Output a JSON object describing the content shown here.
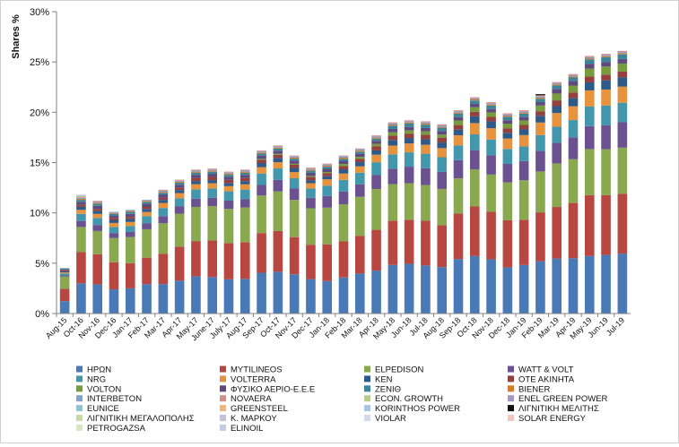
{
  "chart_data": {
    "type": "bar",
    "stacked": true,
    "title": "",
    "xlabel": "",
    "ylabel": "Shares %",
    "ylim": [
      0,
      30
    ],
    "yticks": [
      "0%",
      "5%",
      "10%",
      "15%",
      "20%",
      "25%",
      "30%"
    ],
    "ytick_values": [
      0,
      5,
      10,
      15,
      20,
      25,
      30
    ],
    "grid": false,
    "legend_position": "bottom",
    "categories": [
      "Aug-15",
      "Oct-16",
      "Nov-16",
      "Dec-16",
      "Jan-17",
      "Feb-17",
      "Mar-17",
      "Apr-17",
      "May-17",
      "June-17",
      "July-17",
      "Aug-17",
      "Sep-17",
      "Oct-17",
      "Nov-17",
      "Dec-17",
      "Jan-18",
      "Feb-18",
      "Mar-18",
      "Apr-18",
      "May-18",
      "Jun-18",
      "Jul-18",
      "Aug-18",
      "Sep-18",
      "Oct-18",
      "Nov-18",
      "Dec-18",
      "Jan-19",
      "Feb-19",
      "Mar-19",
      "Apr-19",
      "May-19",
      "Jun-19",
      "Jul-19"
    ],
    "totals": [
      4.5,
      11.8,
      11.2,
      10.1,
      10.3,
      11.3,
      12.3,
      13.3,
      14.3,
      14.4,
      14.1,
      14.3,
      16.2,
      16.7,
      15.7,
      14.5,
      14.9,
      15.7,
      16.4,
      17.7,
      19.0,
      19.2,
      19.1,
      18.8,
      20.2,
      21.5,
      21.0,
      19.9,
      20.2,
      21.8,
      23.0,
      23.8,
      25.6,
      25.8,
      26.1
    ],
    "series": [
      {
        "name": "ΗΡΩΝ",
        "color": "#4a7ab5",
        "values": [
          1.2,
          3.0,
          2.9,
          2.4,
          2.5,
          2.9,
          2.9,
          3.2,
          3.6,
          3.5,
          3.3,
          3.3,
          3.9,
          4.0,
          3.8,
          3.3,
          3.1,
          3.4,
          3.8,
          4.0,
          4.4,
          4.5,
          4.3,
          4.1,
          4.8,
          5.1,
          4.8,
          4.0,
          4.3,
          4.6,
          4.8,
          4.8,
          5.0,
          5.1,
          5.2
        ]
      },
      {
        "name": "MYTILINEOS",
        "color": "#b84742",
        "values": [
          1.2,
          3.1,
          3.0,
          2.7,
          2.5,
          2.6,
          3.0,
          3.3,
          3.4,
          3.5,
          3.5,
          3.5,
          3.8,
          3.9,
          3.6,
          3.3,
          3.5,
          3.4,
          3.6,
          3.8,
          4.0,
          4.0,
          4.0,
          3.7,
          4.0,
          4.4,
          4.2,
          4.1,
          4.0,
          4.3,
          4.5,
          4.8,
          5.3,
          5.2,
          5.2
        ]
      },
      {
        "name": "ELPEDISON",
        "color": "#8aa84f",
        "values": [
          1.2,
          2.5,
          2.3,
          2.4,
          2.6,
          2.8,
          3.0,
          3.2,
          3.3,
          3.3,
          3.3,
          3.3,
          3.6,
          3.8,
          3.6,
          3.5,
          3.5,
          3.5,
          3.7,
          3.8,
          3.3,
          3.3,
          3.2,
          3.2,
          3.1,
          3.3,
          3.3,
          3.3,
          3.5,
          3.6,
          3.8,
          3.8,
          4.0,
          4.0,
          4.0
        ]
      },
      {
        "name": "WATT & VOLT",
        "color": "#6b5190",
        "values": [
          0.1,
          0.6,
          0.6,
          0.5,
          0.5,
          0.6,
          0.7,
          0.7,
          0.8,
          0.8,
          0.8,
          0.8,
          1.0,
          1.1,
          1.1,
          1.0,
          1.1,
          1.2,
          1.2,
          1.3,
          1.4,
          1.5,
          1.5,
          1.5,
          1.6,
          1.7,
          1.7,
          1.6,
          1.7,
          1.8,
          1.8,
          1.9,
          2.0,
          2.1,
          2.2
        ]
      },
      {
        "name": "NRG",
        "color": "#4397ad",
        "values": [
          0.2,
          0.7,
          0.7,
          0.6,
          0.6,
          0.7,
          0.8,
          0.8,
          0.9,
          0.9,
          0.9,
          0.9,
          1.1,
          1.1,
          1.0,
          0.9,
          1.0,
          1.1,
          1.1,
          1.2,
          1.3,
          1.3,
          1.3,
          1.3,
          1.3,
          1.4,
          1.4,
          1.3,
          1.3,
          1.4,
          1.4,
          1.5,
          1.7,
          1.7,
          1.7
        ]
      },
      {
        "name": "VOLTERRA",
        "color": "#e7923d",
        "values": [
          0.1,
          0.4,
          0.4,
          0.4,
          0.4,
          0.4,
          0.5,
          0.5,
          0.5,
          0.5,
          0.5,
          0.5,
          0.6,
          0.6,
          0.6,
          0.5,
          0.6,
          0.6,
          0.6,
          0.7,
          0.8,
          0.8,
          0.8,
          0.8,
          0.9,
          1.0,
          1.0,
          0.9,
          1.0,
          1.1,
          1.2,
          1.2,
          1.4,
          1.4,
          1.4
        ]
      },
      {
        "name": "KEN",
        "color": "#2e5a8a",
        "values": [
          0.1,
          0.3,
          0.3,
          0.3,
          0.3,
          0.3,
          0.3,
          0.3,
          0.3,
          0.3,
          0.3,
          0.3,
          0.4,
          0.4,
          0.4,
          0.3,
          0.3,
          0.4,
          0.4,
          0.4,
          0.5,
          0.5,
          0.5,
          0.5,
          0.5,
          0.6,
          0.6,
          0.5,
          0.5,
          0.6,
          0.6,
          0.7,
          0.7,
          0.8,
          0.8
        ]
      },
      {
        "name": "ΟΤΕ ΑΚΙΝΗΤΑ",
        "color": "#93403e",
        "values": [
          0.1,
          0.2,
          0.2,
          0.2,
          0.2,
          0.2,
          0.2,
          0.2,
          0.3,
          0.3,
          0.3,
          0.3,
          0.3,
          0.3,
          0.3,
          0.3,
          0.3,
          0.3,
          0.3,
          0.4,
          0.4,
          0.4,
          0.4,
          0.4,
          0.4,
          0.4,
          0.4,
          0.4,
          0.4,
          0.4,
          0.5,
          0.5,
          0.5,
          0.5,
          0.5
        ]
      },
      {
        "name": "VOLTON",
        "color": "#779c3e",
        "values": [
          0.0,
          0.0,
          0.0,
          0.0,
          0.0,
          0.0,
          0.0,
          0.0,
          0.0,
          0.0,
          0.0,
          0.0,
          0.1,
          0.1,
          0.1,
          0.1,
          0.1,
          0.2,
          0.2,
          0.2,
          0.3,
          0.3,
          0.3,
          0.3,
          0.4,
          0.4,
          0.4,
          0.4,
          0.4,
          0.5,
          0.6,
          0.6,
          0.7,
          0.7,
          0.7
        ]
      },
      {
        "name": "ΦΥΣΙΚΟ ΑΕΡΙΟ-Ε.Ε.Ε",
        "color": "#5f4a7e",
        "values": [
          0.1,
          0.3,
          0.3,
          0.2,
          0.3,
          0.3,
          0.3,
          0.3,
          0.3,
          0.3,
          0.3,
          0.3,
          0.3,
          0.3,
          0.3,
          0.3,
          0.3,
          0.3,
          0.3,
          0.3,
          0.3,
          0.3,
          0.3,
          0.3,
          0.3,
          0.3,
          0.3,
          0.3,
          0.3,
          0.3,
          0.4,
          0.4,
          0.4,
          0.4,
          0.4
        ]
      },
      {
        "name": "ZENIΘ",
        "color": "#3c8599",
        "values": [
          0.1,
          0.2,
          0.2,
          0.2,
          0.2,
          0.2,
          0.2,
          0.2,
          0.2,
          0.2,
          0.2,
          0.2,
          0.2,
          0.2,
          0.2,
          0.2,
          0.2,
          0.2,
          0.2,
          0.2,
          0.3,
          0.3,
          0.3,
          0.3,
          0.3,
          0.3,
          0.3,
          0.3,
          0.3,
          0.3,
          0.3,
          0.3,
          0.4,
          0.4,
          0.4
        ]
      },
      {
        "name": "BIENER",
        "color": "#d27c30",
        "values": [
          0.0,
          0.1,
          0.1,
          0.1,
          0.1,
          0.1,
          0.1,
          0.1,
          0.1,
          0.1,
          0.1,
          0.1,
          0.1,
          0.1,
          0.1,
          0.1,
          0.1,
          0.1,
          0.1,
          0.1,
          0.1,
          0.1,
          0.1,
          0.1,
          0.1,
          0.1,
          0.1,
          0.1,
          0.1,
          0.1,
          0.1,
          0.1,
          0.1,
          0.1,
          0.1
        ]
      },
      {
        "name": "INTERBETON",
        "color": "#7fa2d1",
        "values": [
          0.0,
          0.1,
          0.1,
          0.1,
          0.1,
          0.1,
          0.1,
          0.1,
          0.1,
          0.1,
          0.1,
          0.1,
          0.1,
          0.1,
          0.1,
          0.1,
          0.1,
          0.1,
          0.1,
          0.1,
          0.1,
          0.1,
          0.1,
          0.1,
          0.1,
          0.1,
          0.1,
          0.1,
          0.1,
          0.1,
          0.1,
          0.1,
          0.1,
          0.1,
          0.1
        ]
      },
      {
        "name": "NOVAERA",
        "color": "#d58d8a",
        "values": [
          0.0,
          0.1,
          0.1,
          0.0,
          0.0,
          0.0,
          0.1,
          0.1,
          0.1,
          0.1,
          0.1,
          0.1,
          0.1,
          0.1,
          0.1,
          0.1,
          0.1,
          0.1,
          0.1,
          0.1,
          0.1,
          0.1,
          0.1,
          0.1,
          0.1,
          0.1,
          0.1,
          0.1,
          0.1,
          0.1,
          0.1,
          0.1,
          0.1,
          0.1,
          0.1
        ]
      },
      {
        "name": "ECON. GROWTH",
        "color": "#b5cc8e",
        "values": [
          0.0,
          0.1,
          0.0,
          0.0,
          0.0,
          0.0,
          0.0,
          0.0,
          0.0,
          0.0,
          0.0,
          0.0,
          0.0,
          0.0,
          0.0,
          0.0,
          0.0,
          0.0,
          0.0,
          0.0,
          0.0,
          0.0,
          0.0,
          0.0,
          0.0,
          0.0,
          0.0,
          0.0,
          0.0,
          0.0,
          0.0,
          0.0,
          0.0,
          0.0,
          0.0
        ]
      },
      {
        "name": "ENEL GREEN POWER",
        "color": "#a697bf",
        "values": [
          0.0,
          0.0,
          0.0,
          0.0,
          0.0,
          0.0,
          0.0,
          0.0,
          0.0,
          0.0,
          0.0,
          0.0,
          0.0,
          0.0,
          0.0,
          0.0,
          0.0,
          0.0,
          0.0,
          0.0,
          0.0,
          0.0,
          0.0,
          0.0,
          0.0,
          0.0,
          0.0,
          0.0,
          0.0,
          0.0,
          0.0,
          0.0,
          0.0,
          0.0,
          0.0
        ]
      },
      {
        "name": "EUNICE",
        "color": "#8cc4d4",
        "values": [
          0.0,
          0.0,
          0.0,
          0.0,
          0.0,
          0.0,
          0.0,
          0.0,
          0.0,
          0.0,
          0.0,
          0.0,
          0.0,
          0.0,
          0.0,
          0.0,
          0.0,
          0.0,
          0.0,
          0.0,
          0.0,
          0.0,
          0.0,
          0.0,
          0.0,
          0.0,
          0.0,
          0.0,
          0.0,
          0.0,
          0.0,
          0.0,
          0.0,
          0.0,
          0.0
        ]
      },
      {
        "name": "GREENSTEEL",
        "color": "#f3b37a",
        "values": [
          0.0,
          0.0,
          0.0,
          0.0,
          0.0,
          0.0,
          0.0,
          0.0,
          0.0,
          0.0,
          0.0,
          0.0,
          0.0,
          0.0,
          0.0,
          0.0,
          0.0,
          0.0,
          0.0,
          0.0,
          0.0,
          0.0,
          0.0,
          0.0,
          0.0,
          0.0,
          0.0,
          0.0,
          0.0,
          0.0,
          0.0,
          0.0,
          0.0,
          0.0,
          0.0
        ]
      },
      {
        "name": "KORINTHOS POWER",
        "color": "#a9c4e6",
        "values": [
          0.0,
          0.1,
          0.0,
          0.0,
          0.0,
          0.0,
          0.0,
          0.0,
          0.0,
          0.0,
          0.0,
          0.0,
          0.0,
          0.0,
          0.0,
          0.0,
          0.0,
          0.0,
          0.0,
          0.0,
          0.0,
          0.0,
          0.0,
          0.0,
          0.0,
          0.0,
          0.0,
          0.0,
          0.0,
          0.0,
          0.0,
          0.0,
          0.0,
          0.0,
          0.0
        ]
      },
      {
        "name": "ΛΙΓΝΙΤΙΚΗ ΜΕΛΙΤΗΣ",
        "color": "#111111",
        "values": [
          0.0,
          0.0,
          0.0,
          0.0,
          0.0,
          0.0,
          0.0,
          0.0,
          0.0,
          0.0,
          0.0,
          0.0,
          0.0,
          0.0,
          0.0,
          0.0,
          0.0,
          0.0,
          0.0,
          0.0,
          0.0,
          0.0,
          0.0,
          0.0,
          0.0,
          0.0,
          0.0,
          0.0,
          0.0,
          0.1,
          0.0,
          0.0,
          0.0,
          0.0,
          0.0
        ]
      },
      {
        "name": "ΛΙΓΝΙΤΙΚΗ ΜΕΓΑΛΟΠΟΛΗΣ",
        "color": "#c9d9a6",
        "values": [
          0.0,
          0.0,
          0.0,
          0.0,
          0.0,
          0.0,
          0.0,
          0.0,
          0.0,
          0.0,
          0.0,
          0.0,
          0.0,
          0.0,
          0.0,
          0.0,
          0.0,
          0.0,
          0.0,
          0.0,
          0.0,
          0.0,
          0.0,
          0.0,
          0.0,
          0.0,
          0.0,
          0.0,
          0.0,
          0.0,
          0.0,
          0.0,
          0.0,
          0.0,
          0.0
        ]
      },
      {
        "name": "Κ. ΜΑΡΚΟΥ",
        "color": "#c7bfd8",
        "values": [
          0.0,
          0.0,
          0.0,
          0.0,
          0.0,
          0.0,
          0.0,
          0.0,
          0.0,
          0.0,
          0.0,
          0.0,
          0.0,
          0.0,
          0.0,
          0.0,
          0.0,
          0.0,
          0.0,
          0.0,
          0.0,
          0.0,
          0.0,
          0.0,
          0.0,
          0.0,
          0.0,
          0.0,
          0.0,
          0.0,
          0.0,
          0.0,
          0.0,
          0.0,
          0.0
        ]
      },
      {
        "name": "VIOLAR",
        "color": "#d5dbe6",
        "values": [
          0.0,
          0.0,
          0.0,
          0.0,
          0.0,
          0.0,
          0.0,
          0.0,
          0.0,
          0.0,
          0.0,
          0.0,
          0.0,
          0.0,
          0.0,
          0.0,
          0.0,
          0.0,
          0.0,
          0.0,
          0.0,
          0.0,
          0.0,
          0.0,
          0.0,
          0.0,
          0.0,
          0.0,
          0.0,
          0.0,
          0.0,
          0.0,
          0.0,
          0.0,
          0.0
        ]
      },
      {
        "name": "SOLAR ENERGY",
        "color": "#f0c4c2",
        "values": [
          0.0,
          0.0,
          0.0,
          0.0,
          0.0,
          0.0,
          0.0,
          0.0,
          0.0,
          0.0,
          0.0,
          0.0,
          0.0,
          0.0,
          0.0,
          0.0,
          0.0,
          0.0,
          0.0,
          0.0,
          0.0,
          0.0,
          0.0,
          0.0,
          0.0,
          0.0,
          0.0,
          0.0,
          0.0,
          0.0,
          0.0,
          0.0,
          0.0,
          0.0,
          0.0
        ]
      },
      {
        "name": "PETROGAZSA",
        "color": "#d9e6c4",
        "values": [
          0.0,
          0.0,
          0.0,
          0.0,
          0.0,
          0.0,
          0.0,
          0.0,
          0.0,
          0.0,
          0.0,
          0.0,
          0.0,
          0.0,
          0.0,
          0.0,
          0.0,
          0.0,
          0.0,
          0.0,
          0.0,
          0.0,
          0.0,
          0.0,
          0.0,
          0.0,
          0.0,
          0.0,
          0.0,
          0.0,
          0.0,
          0.0,
          0.0,
          0.0,
          0.0
        ]
      },
      {
        "name": "ELINOIL",
        "color": "#c3cce0",
        "values": [
          0.0,
          0.0,
          0.0,
          0.0,
          0.0,
          0.0,
          0.0,
          0.0,
          0.0,
          0.0,
          0.0,
          0.0,
          0.0,
          0.0,
          0.0,
          0.0,
          0.0,
          0.0,
          0.0,
          0.0,
          0.0,
          0.0,
          0.0,
          0.0,
          0.0,
          0.0,
          0.0,
          0.0,
          0.0,
          0.0,
          0.0,
          0.0,
          0.0,
          0.0,
          0.0
        ]
      }
    ]
  }
}
